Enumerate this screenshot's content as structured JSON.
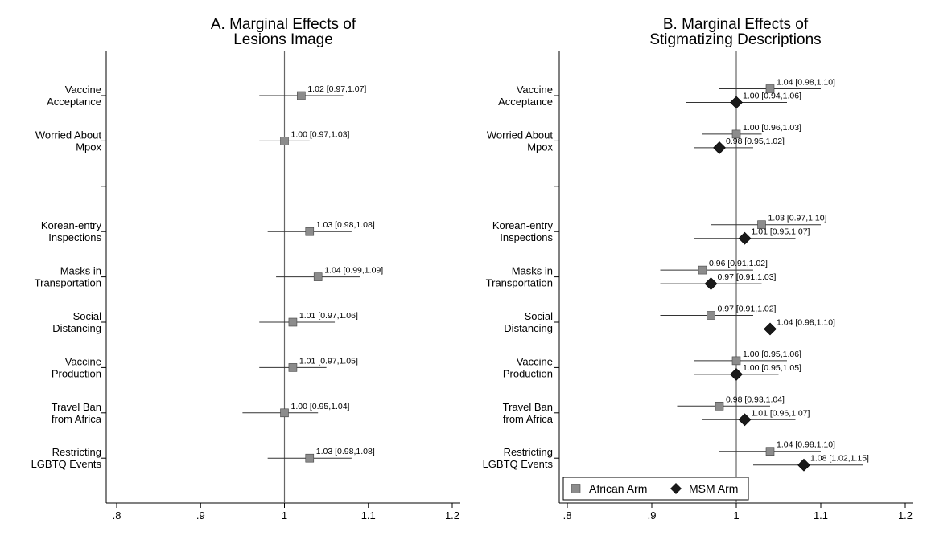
{
  "chart_data": [
    {
      "type": "forest",
      "title": [
        "A. Marginal Effects of",
        "Lesions Image"
      ],
      "xlim": [
        0.8,
        1.2
      ],
      "xticks": [
        ".8",
        ".9",
        "1",
        "1.1",
        "1.2"
      ],
      "reference_line": 1,
      "rows": [
        {
          "label": [
            "Vaccine",
            "Acceptance"
          ],
          "estimates": [
            {
              "arm": "african",
              "est": 1.02,
              "lo": 0.97,
              "hi": 1.07,
              "text": "1.02 [0.97,1.07]"
            }
          ]
        },
        {
          "label": [
            "Worried About",
            "Mpox"
          ],
          "estimates": [
            {
              "arm": "african",
              "est": 1.0,
              "lo": 0.97,
              "hi": 1.03,
              "text": "1.00 [0.97,1.03]"
            }
          ]
        },
        {
          "label": [],
          "estimates": []
        },
        {
          "label": [
            "Korean-entry",
            "Inspections"
          ],
          "estimates": [
            {
              "arm": "african",
              "est": 1.03,
              "lo": 0.98,
              "hi": 1.08,
              "text": "1.03 [0.98,1.08]"
            }
          ]
        },
        {
          "label": [
            "Masks in",
            "Transportation"
          ],
          "estimates": [
            {
              "arm": "african",
              "est": 1.04,
              "lo": 0.99,
              "hi": 1.09,
              "text": "1.04 [0.99,1.09]"
            }
          ]
        },
        {
          "label": [
            "Social",
            "Distancing"
          ],
          "estimates": [
            {
              "arm": "african",
              "est": 1.01,
              "lo": 0.97,
              "hi": 1.06,
              "text": "1.01 [0.97,1.06]"
            }
          ]
        },
        {
          "label": [
            "Vaccine",
            "Production"
          ],
          "estimates": [
            {
              "arm": "african",
              "est": 1.01,
              "lo": 0.97,
              "hi": 1.05,
              "text": "1.01 [0.97,1.05]"
            }
          ]
        },
        {
          "label": [
            "Travel Ban",
            "from Africa"
          ],
          "estimates": [
            {
              "arm": "african",
              "est": 1.0,
              "lo": 0.95,
              "hi": 1.04,
              "text": "1.00 [0.95,1.04]"
            }
          ]
        },
        {
          "label": [
            "Restricting",
            "LGBTQ Events"
          ],
          "estimates": [
            {
              "arm": "african",
              "est": 1.03,
              "lo": 0.98,
              "hi": 1.08,
              "text": "1.03 [0.98,1.08]"
            }
          ]
        }
      ]
    },
    {
      "type": "forest",
      "title": [
        "B. Marginal Effects of",
        "Stigmatizing Descriptions"
      ],
      "xlim": [
        0.8,
        1.2
      ],
      "xticks": [
        ".8",
        ".9",
        "1",
        "1.1",
        "1.2"
      ],
      "reference_line": 1,
      "legend": {
        "position": "bottom-left",
        "entries": [
          {
            "arm": "african",
            "label": "African Arm"
          },
          {
            "arm": "msm",
            "label": "MSM Arm"
          }
        ]
      },
      "rows": [
        {
          "label": [
            "Vaccine",
            "Acceptance"
          ],
          "estimates": [
            {
              "arm": "african",
              "est": 1.04,
              "lo": 0.98,
              "hi": 1.1,
              "text": "1.04 [0.98,1.10]"
            },
            {
              "arm": "msm",
              "est": 1.0,
              "lo": 0.94,
              "hi": 1.06,
              "text": "1.00 [0.94,1.06]"
            }
          ]
        },
        {
          "label": [
            "Worried About",
            "Mpox"
          ],
          "estimates": [
            {
              "arm": "african",
              "est": 1.0,
              "lo": 0.96,
              "hi": 1.03,
              "text": "1.00 [0.96,1.03]"
            },
            {
              "arm": "msm",
              "est": 0.98,
              "lo": 0.95,
              "hi": 1.02,
              "text": "0.98 [0.95,1.02]"
            }
          ]
        },
        {
          "label": [],
          "estimates": []
        },
        {
          "label": [
            "Korean-entry",
            "Inspections"
          ],
          "estimates": [
            {
              "arm": "african",
              "est": 1.03,
              "lo": 0.97,
              "hi": 1.1,
              "text": "1.03 [0.97,1.10]"
            },
            {
              "arm": "msm",
              "est": 1.01,
              "lo": 0.95,
              "hi": 1.07,
              "text": "1.01 [0.95,1.07]"
            }
          ]
        },
        {
          "label": [
            "Masks in",
            "Transportation"
          ],
          "estimates": [
            {
              "arm": "african",
              "est": 0.96,
              "lo": 0.91,
              "hi": 1.02,
              "text": "0.96 [0.91,1.02]"
            },
            {
              "arm": "msm",
              "est": 0.97,
              "lo": 0.91,
              "hi": 1.03,
              "text": "0.97 [0.91,1.03]"
            }
          ]
        },
        {
          "label": [
            "Social",
            "Distancing"
          ],
          "estimates": [
            {
              "arm": "african",
              "est": 0.97,
              "lo": 0.91,
              "hi": 1.02,
              "text": "0.97 [0.91,1.02]"
            },
            {
              "arm": "msm",
              "est": 1.04,
              "lo": 0.98,
              "hi": 1.1,
              "text": "1.04 [0.98,1.10]"
            }
          ]
        },
        {
          "label": [
            "Vaccine",
            "Production"
          ],
          "estimates": [
            {
              "arm": "african",
              "est": 1.0,
              "lo": 0.95,
              "hi": 1.06,
              "text": "1.00 [0.95,1.06]"
            },
            {
              "arm": "msm",
              "est": 1.0,
              "lo": 0.95,
              "hi": 1.05,
              "text": "1.00 [0.95,1.05]"
            }
          ]
        },
        {
          "label": [
            "Travel Ban",
            "from Africa"
          ],
          "estimates": [
            {
              "arm": "african",
              "est": 0.98,
              "lo": 0.93,
              "hi": 1.04,
              "text": "0.98 [0.93,1.04]"
            },
            {
              "arm": "msm",
              "est": 1.01,
              "lo": 0.96,
              "hi": 1.07,
              "text": "1.01 [0.96,1.07]"
            }
          ]
        },
        {
          "label": [
            "Restricting",
            "LGBTQ Events"
          ],
          "estimates": [
            {
              "arm": "african",
              "est": 1.04,
              "lo": 0.98,
              "hi": 1.1,
              "text": "1.04 [0.98,1.10]"
            },
            {
              "arm": "msm",
              "est": 1.08,
              "lo": 1.02,
              "hi": 1.15,
              "text": "1.08 [1.02,1.15]"
            }
          ]
        }
      ]
    }
  ],
  "colors": {
    "african_marker": "#8c8c8c",
    "msm_marker": "#1a1a1a",
    "axis": "#000000",
    "reference_line": "#666666",
    "ci_line": "#333333"
  }
}
